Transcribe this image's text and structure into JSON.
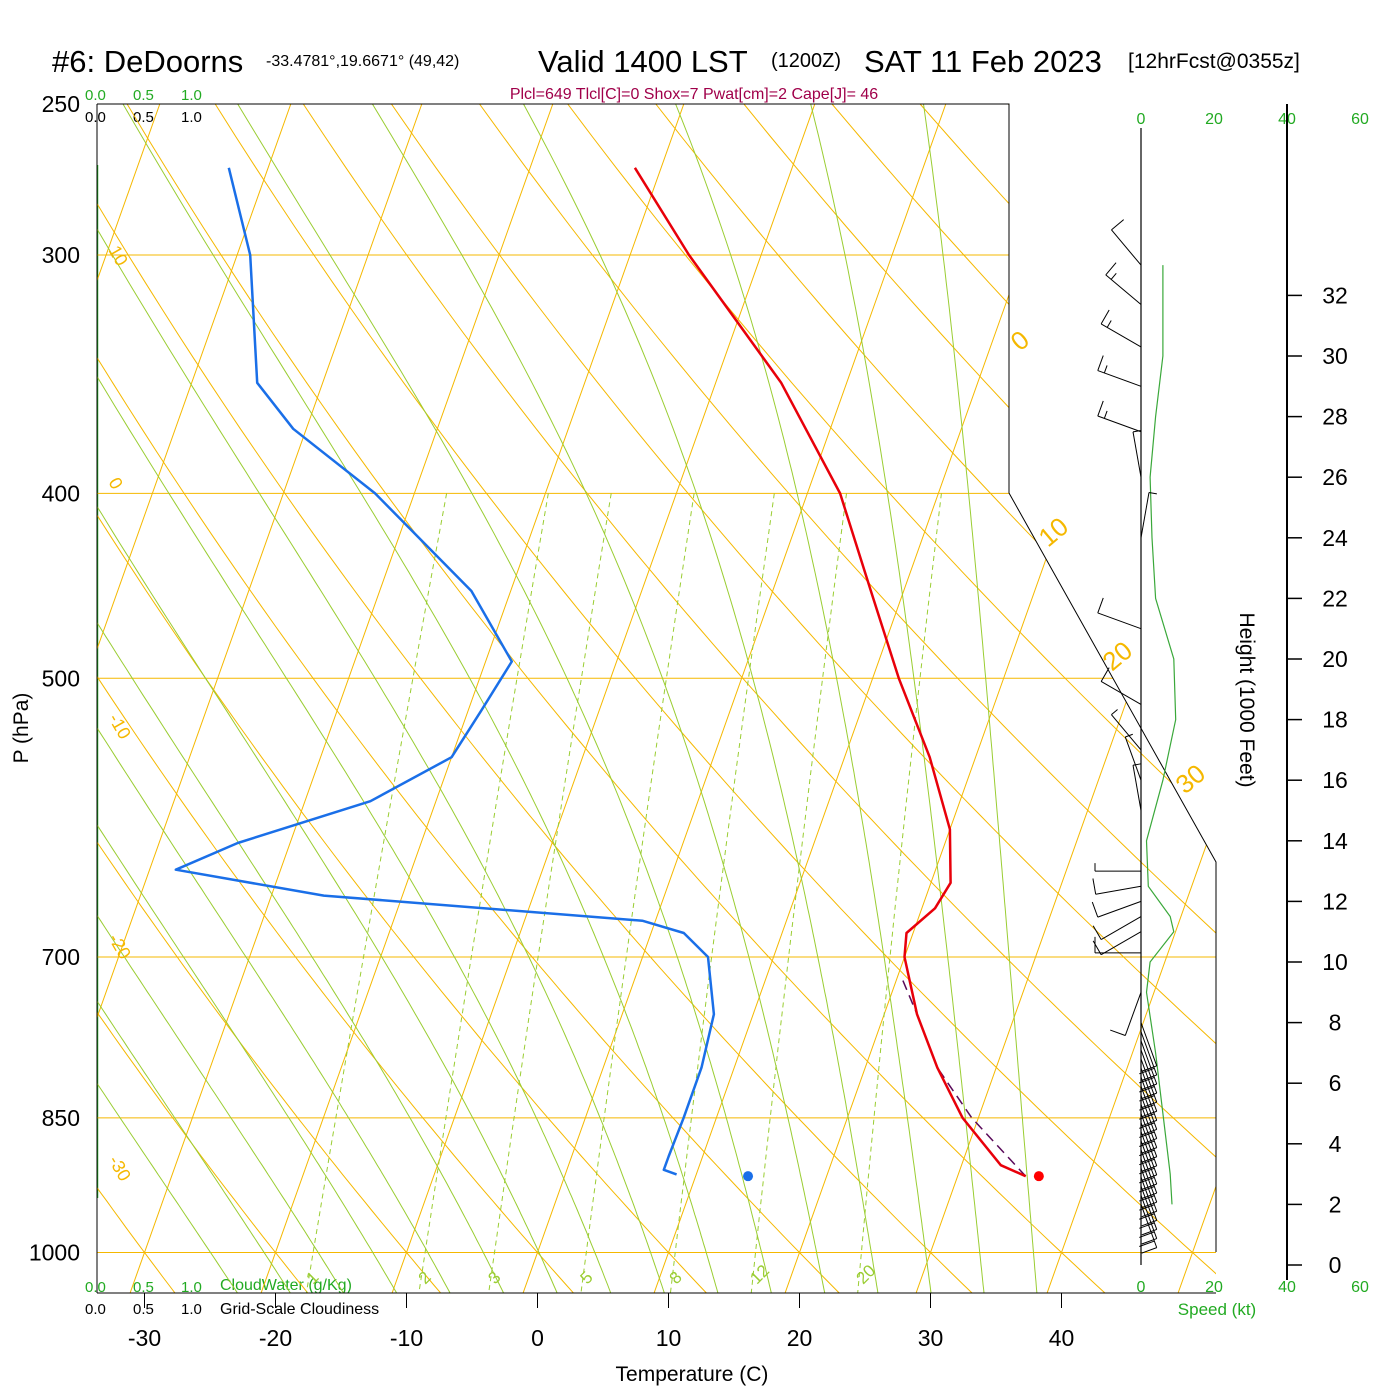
{
  "header": {
    "station": "#6: DeDoorns",
    "coords": "-33.4781°,19.6671° (49,42)",
    "valid": "Valid 1400 LST",
    "zulu": "(1200Z)",
    "date": "SAT 11 Feb 2023",
    "fcst": "[12hrFcst@0355z]"
  },
  "indices": "Plcl=649 Tlcl[C]=0 Shox=7 Pwat[cm]=2 Cape[J]= 46",
  "cloud_scales": {
    "water_ticks": [
      "0.0",
      "0.5",
      "1.0"
    ],
    "cover_ticks": [
      "0.0",
      "0.5",
      "1.0"
    ],
    "water_label": "CloudWater (g/Kg)",
    "cover_label": "Grid-Scale Cloudiness"
  },
  "wind_scale": {
    "ticks": [
      "0",
      "20",
      "40",
      "60"
    ],
    "label": "Speed (kt)"
  },
  "axis_labels": {
    "y_left": "P (hPa)",
    "y_right": "Height (1000 Feet)",
    "x": "Temperature (C)"
  },
  "colors": {
    "temperature": "#e8000a",
    "dewpoint": "#1a6fe8",
    "isotherm_adiabat": "#f5b800",
    "moist_adiabat": "#9acd32",
    "mixing_ratio": "#9acd32",
    "parcel": "#5a0a5a",
    "wind_speed": "#3aa83a",
    "indices": "#a0004a",
    "scale_green": "#22aa22"
  },
  "chart_data": {
    "type": "skew-t",
    "pressure_levels": [
      250,
      300,
      400,
      500,
      700,
      850,
      1000
    ],
    "pressure_tick_labels": [
      "250",
      "300",
      "400",
      "500",
      "700",
      "850",
      "1000"
    ],
    "temperature_ticks": [
      -30,
      -20,
      -10,
      0,
      10,
      20,
      30,
      40
    ],
    "temperature_tick_labels": [
      "-30",
      "-20",
      "-10",
      "0",
      "10",
      "20",
      "30",
      "40"
    ],
    "height_ticks_kft": [
      0,
      2,
      4,
      6,
      8,
      10,
      12,
      14,
      16,
      18,
      20,
      22,
      24,
      26,
      28,
      30,
      32
    ],
    "height_tick_labels": [
      "0",
      "2",
      "4",
      "6",
      "8",
      "10",
      "12",
      "14",
      "16",
      "18",
      "20",
      "22",
      "24",
      "26",
      "28",
      "30",
      "32"
    ],
    "temperature_profile": [
      {
        "p": 912,
        "t": 35.2
      },
      {
        "p": 900,
        "t": 33.0
      },
      {
        "p": 850,
        "t": 28.8
      },
      {
        "p": 800,
        "t": 25.5
      },
      {
        "p": 750,
        "t": 22.5
      },
      {
        "p": 700,
        "t": 20.0
      },
      {
        "p": 680,
        "t": 19.5
      },
      {
        "p": 660,
        "t": 21.0
      },
      {
        "p": 640,
        "t": 21.5
      },
      {
        "p": 600,
        "t": 20.0
      },
      {
        "p": 550,
        "t": 16.5
      },
      {
        "p": 500,
        "t": 12.0
      },
      {
        "p": 450,
        "t": 7.5
      },
      {
        "p": 400,
        "t": 2.5
      },
      {
        "p": 350,
        "t": -5.0
      },
      {
        "p": 300,
        "t": -15.5
      },
      {
        "p": 270,
        "t": -22.0
      }
    ],
    "dewpoint_profile": [
      {
        "p": 910,
        "t": 8.5
      },
      {
        "p": 905,
        "t": 7.4
      },
      {
        "p": 890,
        "t": 7.4
      },
      {
        "p": 850,
        "t": 7.5
      },
      {
        "p": 800,
        "t": 7.5
      },
      {
        "p": 750,
        "t": 7.0
      },
      {
        "p": 700,
        "t": 5.0
      },
      {
        "p": 680,
        "t": 2.5
      },
      {
        "p": 670,
        "t": -1.0
      },
      {
        "p": 650,
        "t": -26.0
      },
      {
        "p": 630,
        "t": -38.0
      },
      {
        "p": 610,
        "t": -34.0
      },
      {
        "p": 580,
        "t": -25.0
      },
      {
        "p": 550,
        "t": -20.0
      },
      {
        "p": 520,
        "t": -19.0
      },
      {
        "p": 490,
        "t": -18.0
      },
      {
        "p": 450,
        "t": -23.0
      },
      {
        "p": 400,
        "t": -33.0
      },
      {
        "p": 370,
        "t": -41.0
      },
      {
        "p": 350,
        "t": -45.0
      },
      {
        "p": 300,
        "t": -49.0
      },
      {
        "p": 270,
        "t": -53.0
      }
    ],
    "parcel_profile": [
      {
        "p": 912,
        "t": 35.2
      },
      {
        "p": 850,
        "t": 29.5
      },
      {
        "p": 800,
        "t": 25.5
      },
      {
        "p": 750,
        "t": 22.5
      },
      {
        "p": 720,
        "t": 20.5
      }
    ],
    "surface_temperature": 36.2,
    "surface_dewpoint": 14.0,
    "surface_pressure": 912,
    "isotherm_labels": [
      "-30",
      "-20",
      "-10",
      "0",
      "10",
      "20",
      "30"
    ],
    "mixing_ratio_labels": [
      "1",
      "2",
      "3",
      "5",
      "8",
      "12",
      "20"
    ],
    "mixing_ratio_values": [
      1,
      2,
      3,
      5,
      8,
      12,
      20
    ],
    "wind_barbs": [
      {
        "h": 2.0,
        "dir": 160,
        "spd": 20
      },
      {
        "h": 2.3,
        "dir": 160,
        "spd": 20
      },
      {
        "h": 2.6,
        "dir": 160,
        "spd": 20
      },
      {
        "h": 2.9,
        "dir": 160,
        "spd": 20
      },
      {
        "h": 3.2,
        "dir": 160,
        "spd": 20
      },
      {
        "h": 3.5,
        "dir": 160,
        "spd": 20
      },
      {
        "h": 3.8,
        "dir": 160,
        "spd": 20
      },
      {
        "h": 4.1,
        "dir": 160,
        "spd": 20
      },
      {
        "h": 4.4,
        "dir": 160,
        "spd": 20
      },
      {
        "h": 4.7,
        "dir": 160,
        "spd": 20
      },
      {
        "h": 5.0,
        "dir": 160,
        "spd": 20
      },
      {
        "h": 5.3,
        "dir": 160,
        "spd": 20
      },
      {
        "h": 5.6,
        "dir": 160,
        "spd": 20
      },
      {
        "h": 5.9,
        "dir": 160,
        "spd": 20
      },
      {
        "h": 6.2,
        "dir": 160,
        "spd": 20
      },
      {
        "h": 6.5,
        "dir": 160,
        "spd": 20
      },
      {
        "h": 6.8,
        "dir": 160,
        "spd": 20
      },
      {
        "h": 7.1,
        "dir": 160,
        "spd": 20
      },
      {
        "h": 7.4,
        "dir": 160,
        "spd": 20
      },
      {
        "h": 7.7,
        "dir": 160,
        "spd": 20
      },
      {
        "h": 8.0,
        "dir": 160,
        "spd": 10
      },
      {
        "h": 9.0,
        "dir": 200,
        "spd": 10
      },
      {
        "h": 10.3,
        "dir": 270,
        "spd": 10
      },
      {
        "h": 11.0,
        "dir": 240,
        "spd": 10
      },
      {
        "h": 11.5,
        "dir": 240,
        "spd": 10
      },
      {
        "h": 12.0,
        "dir": 250,
        "spd": 10
      },
      {
        "h": 12.5,
        "dir": 260,
        "spd": 10
      },
      {
        "h": 13.0,
        "dir": 270,
        "spd": 5
      },
      {
        "h": 15.0,
        "dir": 350,
        "spd": 5
      },
      {
        "h": 16.0,
        "dir": 340,
        "spd": 5
      },
      {
        "h": 17.0,
        "dir": 320,
        "spd": 5
      },
      {
        "h": 18.5,
        "dir": 300,
        "spd": 10
      },
      {
        "h": 21.0,
        "dir": 290,
        "spd": 10
      },
      {
        "h": 24.0,
        "dir": 10,
        "spd": 5
      },
      {
        "h": 26.0,
        "dir": 350,
        "spd": 5
      },
      {
        "h": 27.5,
        "dir": 290,
        "spd": 15
      },
      {
        "h": 29.0,
        "dir": 290,
        "spd": 15
      },
      {
        "h": 30.3,
        "dir": 300,
        "spd": 15
      },
      {
        "h": 31.7,
        "dir": 310,
        "spd": 15
      },
      {
        "h": 33.0,
        "dir": 320,
        "spd": 10
      }
    ],
    "wind_speed_profile": [
      {
        "h": 2.0,
        "spd": 8.5
      },
      {
        "h": 3.0,
        "spd": 8.0
      },
      {
        "h": 5.0,
        "spd": 6.0
      },
      {
        "h": 7.0,
        "spd": 4.0
      },
      {
        "h": 9.0,
        "spd": 1.5
      },
      {
        "h": 10.0,
        "spd": 2.5
      },
      {
        "h": 11.0,
        "spd": 9.0
      },
      {
        "h": 11.5,
        "spd": 8.0
      },
      {
        "h": 12.5,
        "spd": 2.0
      },
      {
        "h": 14.0,
        "spd": 1.5
      },
      {
        "h": 16.0,
        "spd": 6.0
      },
      {
        "h": 18.0,
        "spd": 9.5
      },
      {
        "h": 20.0,
        "spd": 9.0
      },
      {
        "h": 22.0,
        "spd": 4.0
      },
      {
        "h": 24.0,
        "spd": 3.0
      },
      {
        "h": 26.0,
        "spd": 2.5
      },
      {
        "h": 28.0,
        "spd": 4.0
      },
      {
        "h": 30.0,
        "spd": 6.0
      },
      {
        "h": 32.0,
        "spd": 6.0
      },
      {
        "h": 33.0,
        "spd": 6.0
      }
    ]
  }
}
